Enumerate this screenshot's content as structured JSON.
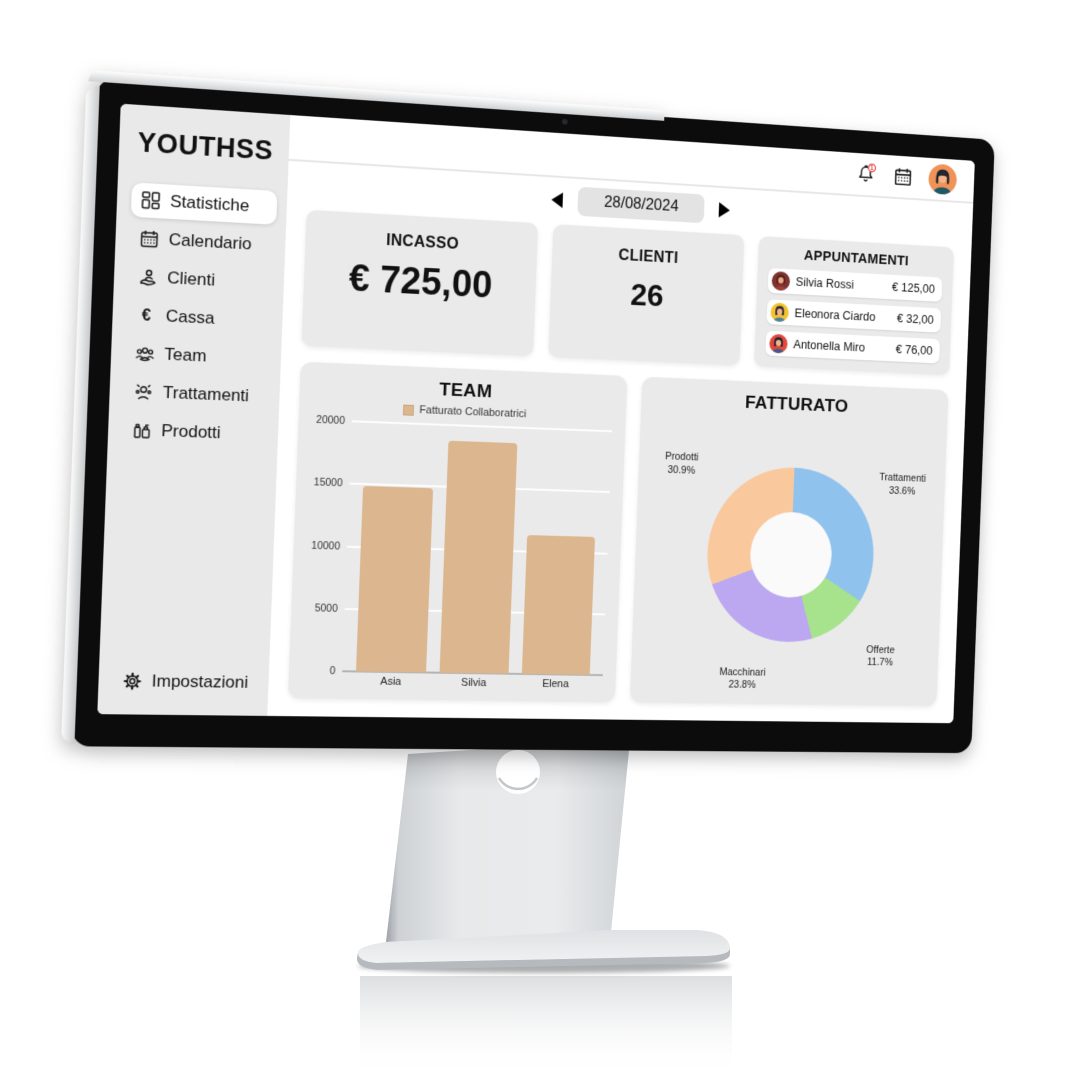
{
  "brand": {
    "logo": "YOUTHSS"
  },
  "sidebar": {
    "items": [
      {
        "label": "Statistiche",
        "icon": "dashboard-icon",
        "active": true
      },
      {
        "label": "Calendario",
        "icon": "calendar-icon",
        "active": false
      },
      {
        "label": "Clienti",
        "icon": "client-hand-icon",
        "active": false
      },
      {
        "label": "Cassa",
        "icon": "euro-icon",
        "active": false
      },
      {
        "label": "Team",
        "icon": "team-icon",
        "active": false
      },
      {
        "label": "Trattamenti",
        "icon": "treatments-icon",
        "active": false
      },
      {
        "label": "Prodotti",
        "icon": "products-icon",
        "active": false
      }
    ],
    "settings": {
      "label": "Impostazioni",
      "icon": "gear-icon"
    }
  },
  "header": {
    "date_label": "28/08/2024",
    "notification_badge": "1"
  },
  "stats": {
    "incasso": {
      "title": "INCASSO",
      "value": "€ 725,00"
    },
    "clienti": {
      "title": "CLIENTI",
      "value": "26"
    }
  },
  "appointments": {
    "title": "APPUNTAMENTI",
    "rows": [
      {
        "name": "Silvia Rossi",
        "amount": "€ 125,00",
        "avatar": {
          "bg": "#7e3330",
          "hair": "#5a241c",
          "skin": "#edaa86",
          "top": "#9c4038"
        }
      },
      {
        "name": "Eleonora Ciardo",
        "amount": "€ 32,00",
        "avatar": {
          "bg": "#f2c230",
          "hair": "#2d2a33",
          "skin": "#f0b48c",
          "top": "#4a7fa5"
        }
      },
      {
        "name": "Antonella Miro",
        "amount": "€ 76,00",
        "avatar": {
          "bg": "#e2493b",
          "hair": "#23232e",
          "skin": "#f0b48c",
          "top": "#3c5d8c"
        }
      }
    ]
  },
  "chart_data": [
    {
      "type": "bar",
      "title": "TEAM",
      "legend": [
        "Fatturato Collaboratrici"
      ],
      "categories": [
        "Asia",
        "Silvia",
        "Elena"
      ],
      "values": [
        14900,
        18700,
        11300
      ],
      "xlabel": "",
      "ylabel": "",
      "ylim": [
        0,
        20000
      ],
      "yticks": [
        0,
        5000,
        10000,
        15000,
        20000
      ],
      "bar_color": "#dcb68f",
      "grid": true,
      "legend_position": "top"
    },
    {
      "type": "pie",
      "donut": true,
      "title": "FATTURATO",
      "direction": "clockwise",
      "start_angle_deg": 0,
      "series": [
        {
          "name": "Trattamenti",
          "value": 33.6,
          "pct_label": "33.6%",
          "color": "#90c2ee"
        },
        {
          "name": "Offerte",
          "value": 11.7,
          "pct_label": "11.7%",
          "color": "#a7e28c"
        },
        {
          "name": "Macchinari",
          "value": 23.8,
          "pct_label": "23.8%",
          "color": "#bca8f1"
        },
        {
          "name": "Prodotti",
          "value": 30.9,
          "pct_label": "30.9%",
          "color": "#f9c89d"
        }
      ],
      "labels_format": "name + percent"
    }
  ],
  "colors": {
    "sidebar_bg": "#e9e9e9",
    "card_bg": "#eaeaea",
    "date_pill_bg": "#e3e3e3",
    "badge_red": "#e23b3b",
    "header_avatar_bg": "#ef9356",
    "bezel": "#0c0c0d"
  }
}
